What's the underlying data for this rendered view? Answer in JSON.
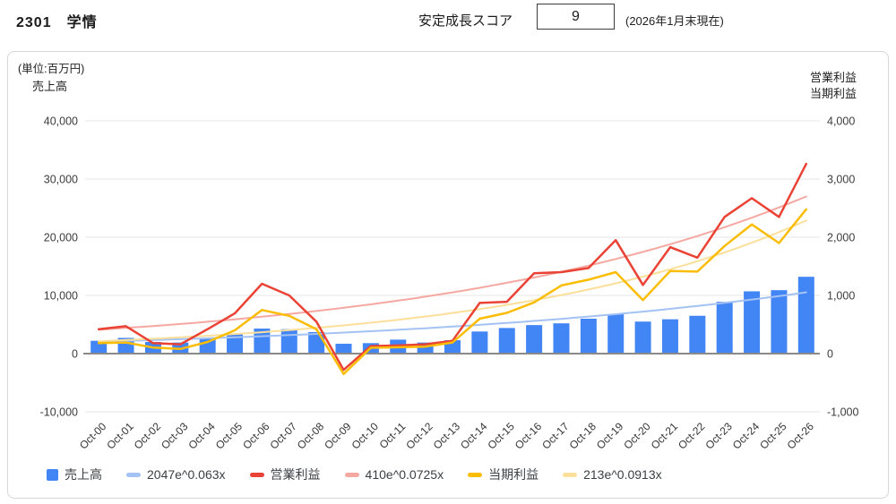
{
  "header": {
    "title": "2301　学情",
    "score_label": "安定成長スコア",
    "score_value": "9",
    "as_of": "(2026年1月末現在)"
  },
  "chart_meta": {
    "unit_note": "(単位:百万円)",
    "left_axis_title": "売上高",
    "right_axis_title_line1": "営業利益",
    "right_axis_title_line2": "当期利益"
  },
  "legend": [
    {
      "key": "revenue",
      "label": "売上高",
      "swatch": "square",
      "color": "#4285F4"
    },
    {
      "key": "revenue-trend",
      "label": "2047e^0.063x",
      "swatch": "line",
      "color": "#A4C2F4"
    },
    {
      "key": "operating-profit",
      "label": "営業利益",
      "swatch": "line",
      "color": "#EA4335"
    },
    {
      "key": "operating-profit-trend",
      "label": "410e^0.0725x",
      "swatch": "line",
      "color": "#F5A8A1"
    },
    {
      "key": "net-profit",
      "label": "当期利益",
      "swatch": "line",
      "color": "#FBBC04"
    },
    {
      "key": "net-profit-trend",
      "label": "213e^0.0913x",
      "swatch": "line",
      "color": "#FBDF9B"
    }
  ],
  "chart_data": {
    "type": "bar",
    "subtype": "combo dual-axis: bars (left axis, 百万円) + lines (right axis, 百万円) + exponential trendlines",
    "categories": [
      "Oct-00",
      "Oct-01",
      "Oct-02",
      "Oct-03",
      "Oct-04",
      "Oct-05",
      "Oct-06",
      "Oct-07",
      "Oct-08",
      "Oct-09",
      "Oct-10",
      "Oct-11",
      "Oct-12",
      "Oct-13",
      "Oct-14",
      "Oct-15",
      "Oct-16",
      "Oct-17",
      "Oct-18",
      "Oct-19",
      "Oct-20",
      "Oct-21",
      "Oct-22",
      "Oct-23",
      "Oct-24",
      "Oct-25",
      "Oct-26"
    ],
    "series": [
      {
        "name": "売上高",
        "type": "bar",
        "axis": "left",
        "color": "#4285F4",
        "values": [
          2200,
          2700,
          2000,
          1900,
          2600,
          3300,
          4300,
          4200,
          3700,
          1700,
          1800,
          2400,
          1900,
          2300,
          3800,
          4400,
          4900,
          5200,
          6000,
          6800,
          5500,
          5900,
          6500,
          8900,
          10700,
          10900,
          13200
        ]
      },
      {
        "name": "営業利益",
        "type": "line",
        "axis": "right",
        "color": "#EA4335",
        "values": [
          420,
          470,
          180,
          160,
          420,
          690,
          1200,
          1000,
          550,
          -280,
          130,
          140,
          160,
          220,
          870,
          890,
          1380,
          1400,
          1470,
          1950,
          1180,
          1830,
          1650,
          2350,
          2670,
          2350,
          3260
        ]
      },
      {
        "name": "当期利益",
        "type": "line",
        "axis": "right",
        "color": "#FBBC04",
        "values": [
          180,
          190,
          105,
          80,
          200,
          400,
          750,
          650,
          420,
          -350,
          100,
          110,
          120,
          190,
          600,
          700,
          880,
          1170,
          1270,
          1400,
          920,
          1420,
          1410,
          1850,
          2220,
          1900,
          2480
        ]
      }
    ],
    "trendlines": [
      {
        "name": "2047e^0.063x",
        "coefficient": 2047,
        "rate": 0.063,
        "axis": "left",
        "color": "#A4C2F4"
      },
      {
        "name": "410e^0.0725x",
        "coefficient": 410,
        "rate": 0.0725,
        "axis": "right",
        "color": "#F5A8A1"
      },
      {
        "name": "213e^0.0913x",
        "coefficient": 213,
        "rate": 0.0913,
        "axis": "right",
        "color": "#FBDF9B"
      }
    ],
    "left_axis": {
      "label": "売上高",
      "min": -10000,
      "max": 40000,
      "tick_values": [
        -10000,
        0,
        10000,
        20000,
        30000,
        40000
      ],
      "tick_labels": [
        "-10,000",
        "0",
        "10,000",
        "20,000",
        "30,000",
        "40,000"
      ]
    },
    "right_axis": {
      "label": "営業利益 / 当期利益",
      "min": -1000,
      "max": 4000,
      "tick_values": [
        -1000,
        0,
        1000,
        2000,
        3000,
        4000
      ],
      "tick_labels": [
        "-1,000",
        "0",
        "1,000",
        "2,000",
        "3,000",
        "4,000"
      ]
    },
    "grid": true,
    "legend_position": "bottom"
  }
}
